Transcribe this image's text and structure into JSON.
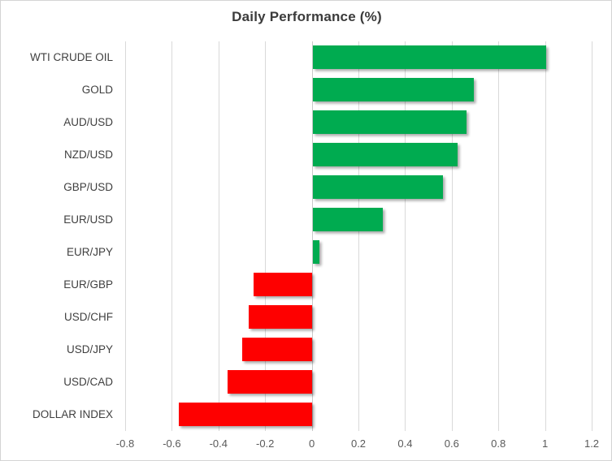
{
  "chart_data": {
    "type": "bar",
    "orientation": "horizontal",
    "title": "Daily Performance (%)",
    "categories": [
      "WTI CRUDE OIL",
      "GOLD",
      "AUD/USD",
      "NZD/USD",
      "GBP/USD",
      "EUR/USD",
      "EUR/JPY",
      "EUR/GBP",
      "USD/CHF",
      "USD/JPY",
      "USD/CAD",
      "DOLLAR INDEX"
    ],
    "values": [
      1.0,
      0.69,
      0.66,
      0.62,
      0.56,
      0.3,
      0.03,
      -0.25,
      -0.27,
      -0.3,
      -0.36,
      -0.57
    ],
    "xlabel": "",
    "ylabel": "",
    "xlim": [
      -0.8,
      1.2
    ],
    "xtick_labels": [
      "-0.8",
      "-0.6",
      "-0.4",
      "-0.2",
      "0",
      "0.2",
      "0.4",
      "0.6",
      "0.8",
      "1",
      "1.2"
    ],
    "xtick_values": [
      -0.8,
      -0.6,
      -0.4,
      -0.2,
      0,
      0.2,
      0.4,
      0.6,
      0.8,
      1,
      1.2
    ],
    "grid": true,
    "legend": false,
    "positive_color": "#00AB50",
    "negative_color": "#FE0000",
    "gridline_color": "#D9D9D9",
    "title_color": "#3B3B3B",
    "tick_label_color": "#595959",
    "category_label_color": "#3F3F3F"
  }
}
